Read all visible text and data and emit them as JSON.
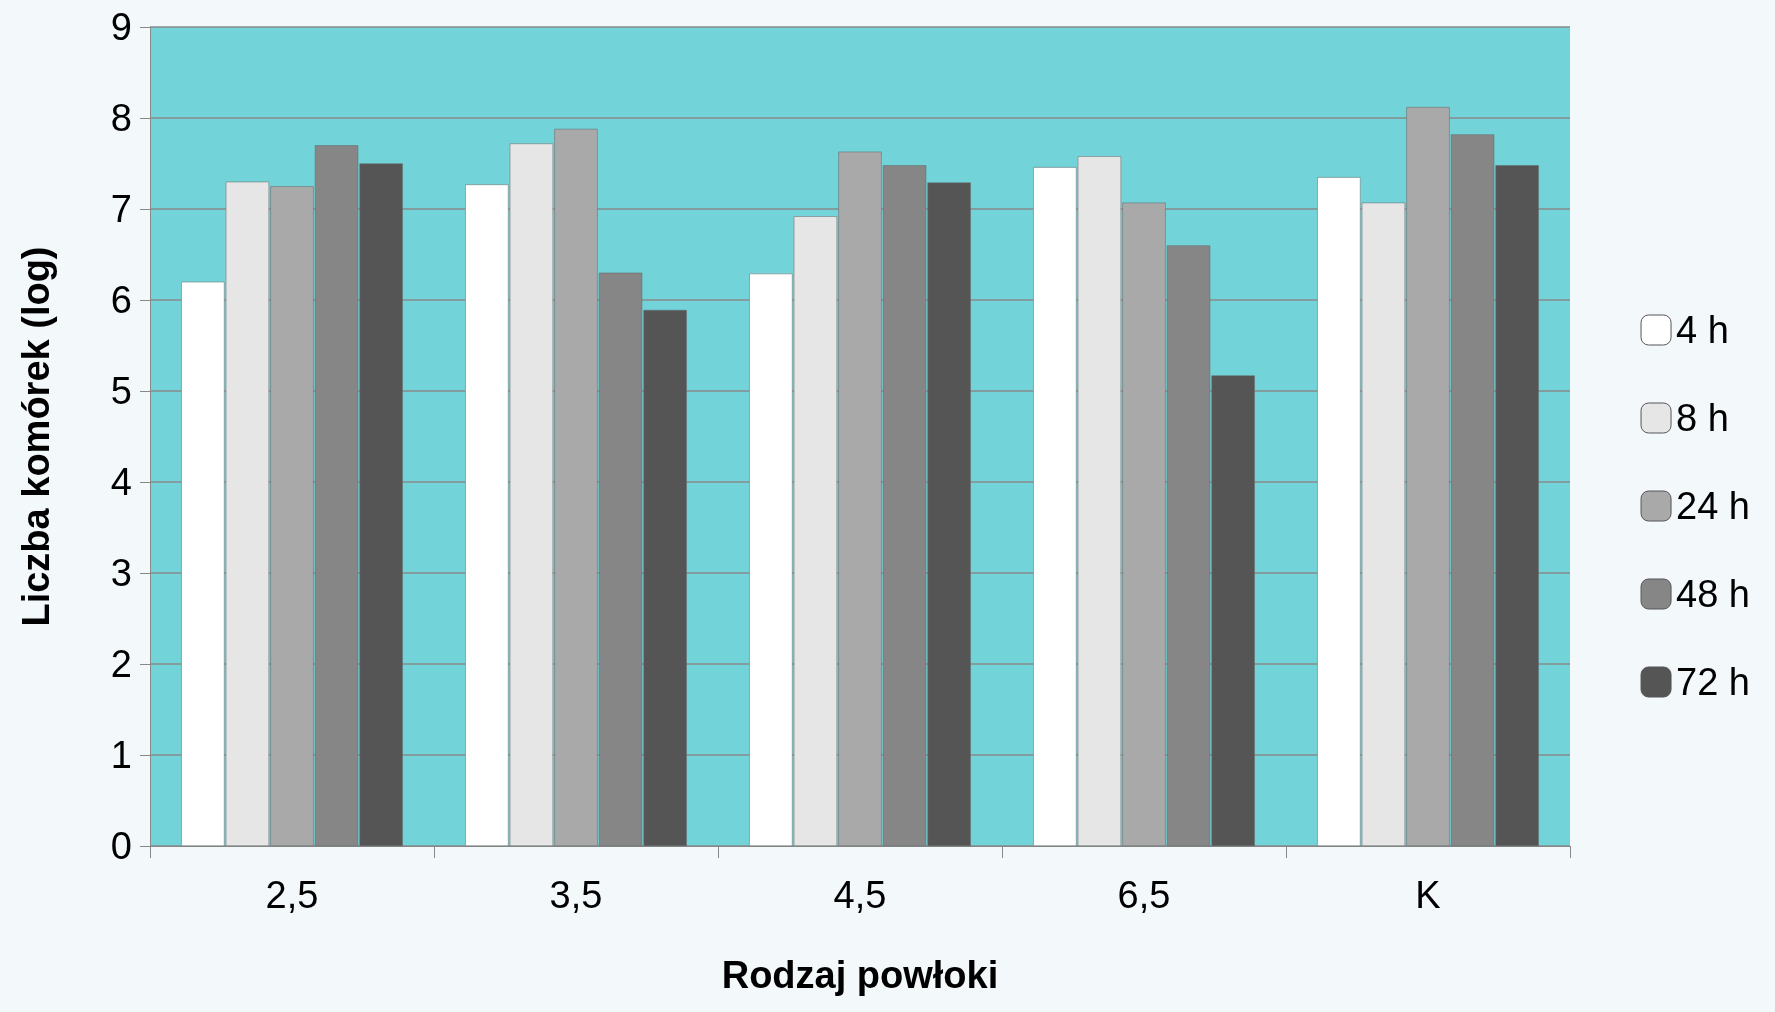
{
  "chart_data": {
    "type": "bar",
    "xlabel": "Rodzaj powłoki",
    "ylabel": "Liczba komórek (log)",
    "categories": [
      "2,5",
      "3,5",
      "4,5",
      "6,5",
      "K"
    ],
    "series": [
      {
        "name": "4 h",
        "color": "#ffffff",
        "values": [
          6.2,
          7.27,
          6.29,
          7.46,
          7.35
        ]
      },
      {
        "name": "8 h",
        "color": "#e6e6e6",
        "values": [
          7.3,
          7.72,
          6.92,
          7.58,
          7.07
        ]
      },
      {
        "name": "24 h",
        "color": "#a9a9a9",
        "values": [
          7.25,
          7.88,
          7.63,
          7.07,
          8.12
        ]
      },
      {
        "name": "48 h",
        "color": "#868686",
        "values": [
          7.7,
          6.3,
          7.48,
          6.6,
          7.82
        ]
      },
      {
        "name": "72 h",
        "color": "#555555",
        "values": [
          7.5,
          5.89,
          7.29,
          5.17,
          7.48
        ]
      }
    ],
    "ylim": [
      0,
      9
    ],
    "yticks": [
      0,
      1,
      2,
      3,
      4,
      5,
      6,
      7,
      8,
      9
    ],
    "grid": "y",
    "legend": "right"
  }
}
